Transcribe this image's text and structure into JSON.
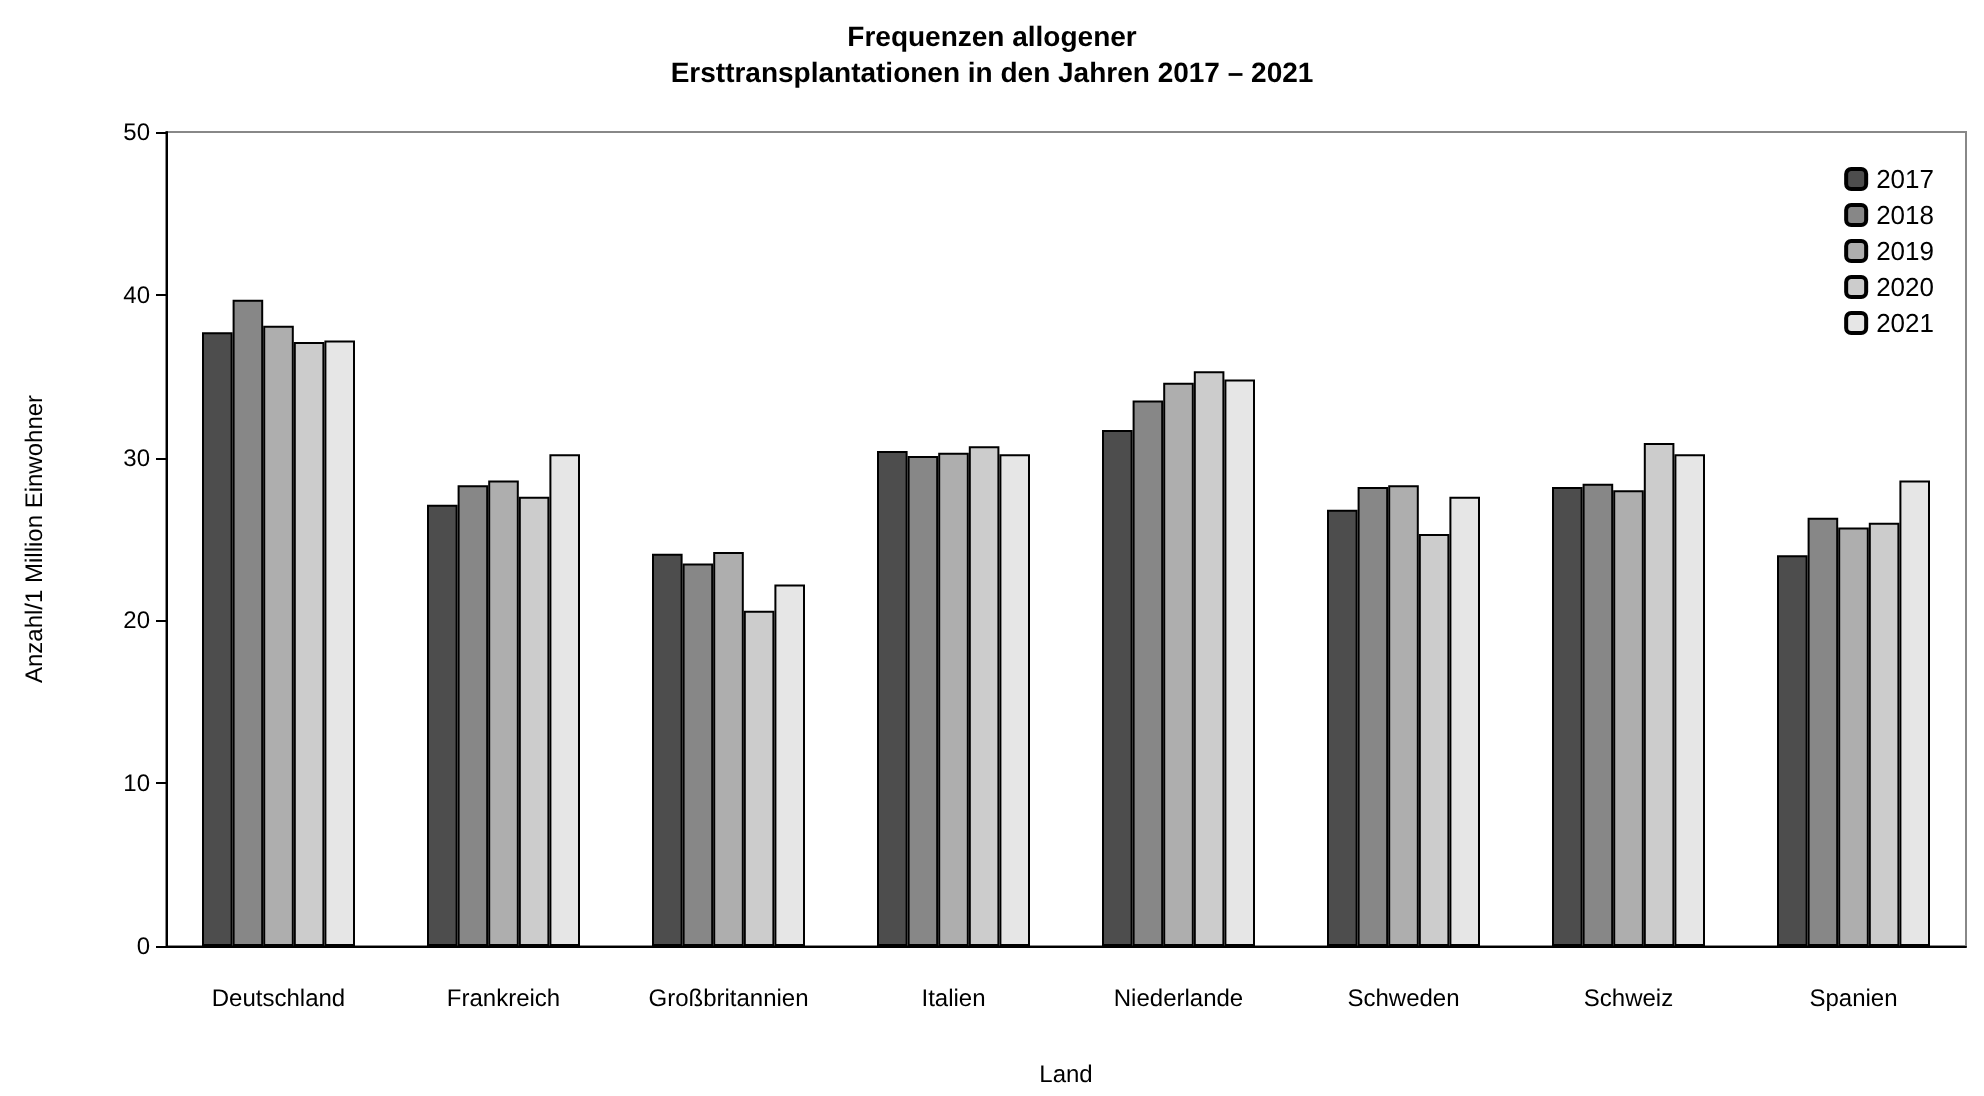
{
  "chart_data": {
    "type": "bar",
    "title": "Frequenzen allogener\nErsttransplantationen in den Jahren 2017 – 2021",
    "xlabel": "Land",
    "ylabel": "Anzahl/1 Million Einwohner",
    "categories": [
      "Deutschland",
      "Frankreich",
      "Großbritannien",
      "Italien",
      "Niederlande",
      "Schweden",
      "Schweiz",
      "Spanien"
    ],
    "series": [
      {
        "name": "2017",
        "color": "#4d4d4d",
        "values": [
          37.7,
          27.1,
          24.1,
          30.4,
          31.7,
          26.8,
          28.2,
          24.0
        ]
      },
      {
        "name": "2018",
        "color": "#878787",
        "values": [
          39.7,
          28.3,
          23.5,
          30.1,
          33.5,
          28.2,
          28.4,
          26.3
        ]
      },
      {
        "name": "2019",
        "color": "#aeaeae",
        "values": [
          38.1,
          28.6,
          24.2,
          30.3,
          34.6,
          28.3,
          28.0,
          25.7
        ]
      },
      {
        "name": "2020",
        "color": "#cccccc",
        "values": [
          37.1,
          27.6,
          20.6,
          30.7,
          35.3,
          25.3,
          30.9,
          26.0
        ]
      },
      {
        "name": "2021",
        "color": "#e6e6e6",
        "values": [
          37.2,
          30.2,
          22.2,
          30.2,
          34.8,
          27.6,
          30.2,
          28.6
        ]
      }
    ],
    "ylim": [
      0,
      50
    ],
    "yticks": [
      0,
      10,
      20,
      30,
      40,
      50
    ],
    "grid": false,
    "legend": "top right"
  }
}
